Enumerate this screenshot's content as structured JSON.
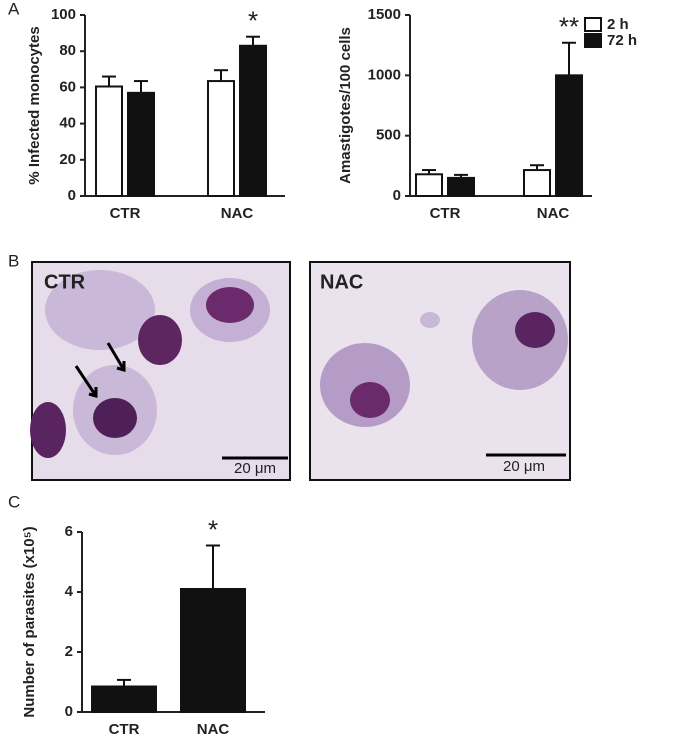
{
  "panel_labels": [
    "A",
    "B",
    "C"
  ],
  "micrographs": [
    {
      "label": "CTR",
      "scale_bar": "20 μm"
    },
    {
      "label": "NAC",
      "scale_bar": "20 μm"
    }
  ],
  "chart_data": [
    {
      "type": "bar",
      "ylabel": "% Infected monocytes",
      "categories": [
        "CTR",
        "NAC"
      ],
      "series": [
        {
          "color": "#ffffff",
          "values": [
            60.5,
            63.5
          ],
          "errors": [
            5.5,
            6
          ]
        },
        {
          "color": "#111111",
          "values": [
            57,
            83
          ],
          "errors": [
            6.5,
            5
          ]
        }
      ],
      "ylim": [
        0,
        100
      ],
      "yticks": [
        0,
        20,
        40,
        60,
        80,
        100
      ],
      "annotations": [
        "*"
      ]
    },
    {
      "type": "bar",
      "ylabel": "Amastigotes/100 cells",
      "categories": [
        "CTR",
        "NAC"
      ],
      "series": [
        {
          "name": "2 h",
          "color": "#ffffff",
          "values": [
            180,
            215
          ],
          "errors": [
            35,
            40
          ]
        },
        {
          "name": "72 h",
          "color": "#111111",
          "values": [
            150,
            1000
          ],
          "errors": [
            25,
            270
          ]
        }
      ],
      "ylim": [
        0,
        1500
      ],
      "yticks": [
        0,
        500,
        1000,
        1500
      ],
      "annotations": [
        "**"
      ]
    },
    {
      "type": "bar",
      "ylabel": "Number of parasites (x10⁵)",
      "categories": [
        "CTR",
        "NAC"
      ],
      "series": [
        {
          "color": "#111111",
          "values": [
            0.85,
            4.1
          ],
          "errors": [
            0.22,
            1.45
          ]
        }
      ],
      "ylim": [
        0,
        6
      ],
      "yticks": [
        0,
        2,
        4,
        6
      ],
      "annotations": [
        "*"
      ]
    }
  ]
}
